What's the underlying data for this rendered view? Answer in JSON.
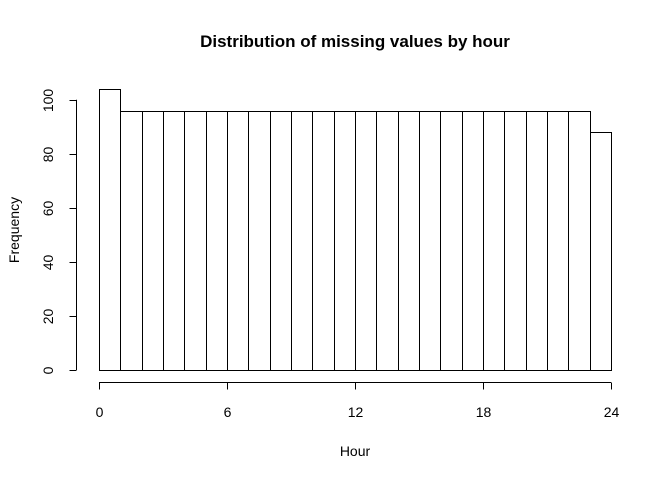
{
  "chart_data": {
    "type": "bar",
    "title": "Distribution of missing values by hour",
    "xlabel": "Hour",
    "ylabel": "Frequency",
    "bin_edges": [
      0,
      1,
      2,
      3,
      4,
      5,
      6,
      7,
      8,
      9,
      10,
      11,
      12,
      13,
      14,
      15,
      16,
      17,
      18,
      19,
      20,
      21,
      22,
      23,
      24
    ],
    "values": [
      104,
      96,
      96,
      96,
      96,
      96,
      96,
      96,
      96,
      96,
      96,
      96,
      96,
      96,
      96,
      96,
      96,
      96,
      96,
      96,
      96,
      96,
      96,
      88
    ],
    "xlim": [
      0,
      24
    ],
    "ylim": [
      0,
      104
    ],
    "x_ticks": [
      0,
      6,
      12,
      18,
      24
    ],
    "y_ticks": [
      0,
      20,
      40,
      60,
      80,
      100
    ],
    "x_tick_labels": [
      "0",
      "6",
      "12",
      "18",
      "24"
    ],
    "y_tick_labels": [
      "0",
      "20",
      "40",
      "60",
      "80",
      "100"
    ],
    "grid": false,
    "legend": "none",
    "bar_fill": "#ffffff",
    "bar_stroke": "#000000"
  }
}
